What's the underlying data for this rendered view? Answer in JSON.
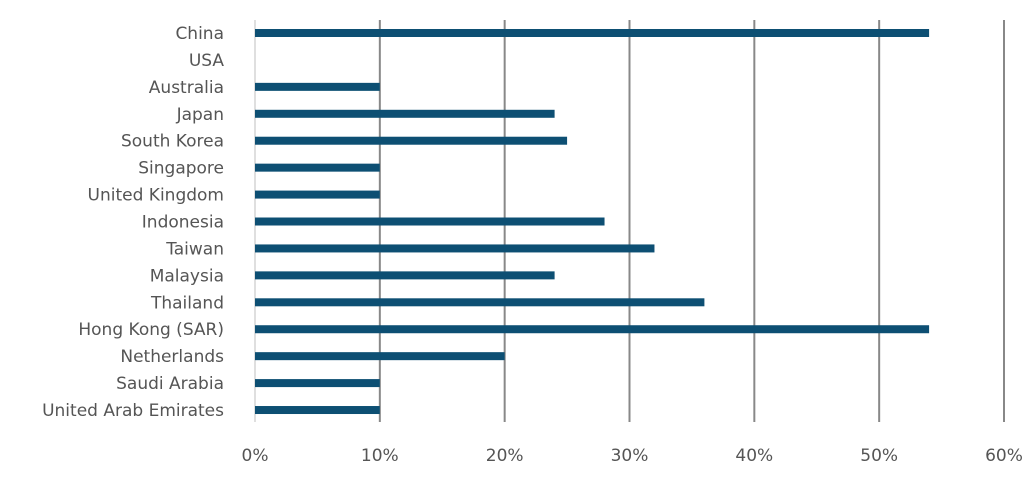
{
  "chart_data": {
    "type": "bar",
    "orientation": "horizontal",
    "title": "",
    "xlabel": "",
    "ylabel": "",
    "categories": [
      "China",
      "USA",
      "Australia",
      "Japan",
      "South Korea",
      "Singapore",
      "United Kingdom",
      "Indonesia",
      "Taiwan",
      "Malaysia",
      "Thailand",
      "Hong Kong (SAR)",
      "Netherlands",
      "Saudi Arabia",
      "United Arab Emirates"
    ],
    "values": [
      54,
      0,
      10,
      24,
      25,
      10,
      10,
      28,
      32,
      24,
      36,
      54,
      20,
      10,
      10
    ],
    "xlim": [
      0,
      60
    ],
    "x_ticks": [
      0,
      10,
      20,
      30,
      40,
      50,
      60
    ],
    "x_tick_labels": [
      "0%",
      "10%",
      "20%",
      "30%",
      "40%",
      "50%",
      "60%"
    ],
    "bar_color": "#0d4f73",
    "grid": "vertical",
    "legend": "none"
  }
}
